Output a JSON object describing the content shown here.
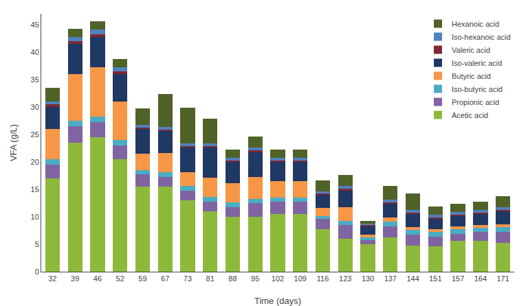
{
  "chart_data": {
    "type": "bar",
    "stacked": true,
    "xlabel": "Time (days)",
    "ylabel": "VFA (g/L)",
    "categories": [
      "32",
      "39",
      "46",
      "52",
      "59",
      "67",
      "73",
      "81",
      "88",
      "95",
      "102",
      "109",
      "116",
      "123",
      "130",
      "137",
      "144",
      "151",
      "157",
      "164",
      "171"
    ],
    "series": [
      {
        "name": "Acetic acid",
        "color": "#8db93b",
        "values": [
          17.0,
          23.5,
          24.5,
          20.5,
          15.5,
          15.5,
          13.0,
          11.0,
          10.0,
          10.0,
          10.5,
          10.5,
          7.8,
          6.0,
          5.0,
          6.3,
          4.8,
          4.6,
          5.6,
          5.6,
          5.3
        ]
      },
      {
        "name": "Propionic acid",
        "color": "#8064a2",
        "values": [
          2.5,
          3.0,
          2.8,
          2.5,
          2.2,
          1.8,
          1.8,
          1.8,
          1.8,
          2.5,
          2.2,
          2.2,
          1.8,
          2.5,
          0.8,
          2.0,
          2.0,
          1.8,
          1.3,
          1.6,
          2.0
        ]
      },
      {
        "name": "Iso-butyric acid",
        "color": "#4bacc6",
        "values": [
          1.0,
          1.0,
          1.0,
          1.0,
          0.8,
          0.8,
          0.8,
          0.8,
          0.8,
          0.8,
          0.8,
          0.8,
          0.5,
          0.8,
          0.5,
          0.8,
          0.8,
          0.8,
          0.8,
          0.8,
          0.8
        ]
      },
      {
        "name": "Butyric acid",
        "color": "#f79646",
        "values": [
          5.5,
          8.5,
          9.0,
          7.0,
          3.0,
          3.5,
          2.5,
          3.5,
          3.5,
          4.0,
          3.0,
          3.0,
          1.5,
          2.5,
          0.5,
          0.8,
          0.5,
          0.5,
          0.5,
          0.5,
          0.5
        ]
      },
      {
        "name": "Iso-valeric acid",
        "color": "#1f3864",
        "values": [
          4.0,
          5.5,
          5.5,
          5.0,
          4.5,
          4.0,
          4.5,
          5.5,
          4.0,
          4.5,
          3.5,
          3.5,
          2.5,
          3.0,
          1.5,
          2.5,
          2.5,
          2.0,
          2.0,
          2.0,
          2.5
        ]
      },
      {
        "name": "Valeric acid",
        "color": "#7f2833",
        "values": [
          0.5,
          0.5,
          0.5,
          0.5,
          0.3,
          0.3,
          0.3,
          0.3,
          0.2,
          0.3,
          0.3,
          0.3,
          0.2,
          0.3,
          0.2,
          0.2,
          0.2,
          0.2,
          0.2,
          0.2,
          0.2
        ]
      },
      {
        "name": "Iso-hexanoic acid",
        "color": "#4f81bd",
        "values": [
          0.5,
          0.8,
          0.8,
          0.8,
          0.5,
          0.5,
          0.5,
          0.5,
          0.5,
          0.5,
          0.5,
          0.5,
          0.3,
          0.5,
          0.3,
          0.5,
          0.5,
          0.5,
          0.5,
          0.5,
          0.5
        ]
      },
      {
        "name": "Hexanoic acid",
        "color": "#4f6228",
        "values": [
          2.5,
          1.5,
          1.5,
          1.5,
          3.0,
          6.0,
          6.5,
          4.5,
          1.5,
          2.0,
          1.5,
          1.5,
          2.0,
          2.0,
          0.5,
          2.5,
          3.0,
          1.5,
          1.5,
          1.5,
          2.0
        ]
      }
    ],
    "ylim": [
      0,
      47
    ],
    "yticks": [
      0,
      5,
      10,
      15,
      20,
      25,
      30,
      35,
      40,
      45
    ],
    "grid": false,
    "legend": "upper right"
  }
}
